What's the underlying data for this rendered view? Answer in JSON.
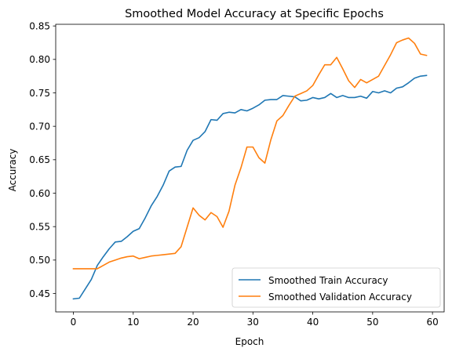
{
  "chart_data": {
    "type": "line",
    "title": "Smoothed Model Accuracy at Specific Epochs",
    "xlabel": "Epoch",
    "ylabel": "Accuracy",
    "xlim": [
      -2.95,
      61.95
    ],
    "ylim": [
      0.4225,
      0.8525
    ],
    "xticks": [
      0,
      10,
      20,
      30,
      40,
      50,
      60
    ],
    "yticks": [
      0.45,
      0.5,
      0.55,
      0.6,
      0.65,
      0.7,
      0.75,
      0.8,
      0.85
    ],
    "legend_position": "lower-right",
    "grid": false,
    "x": [
      0,
      1,
      2,
      3,
      4,
      5,
      6,
      7,
      8,
      9,
      10,
      11,
      12,
      13,
      14,
      15,
      16,
      17,
      18,
      19,
      20,
      21,
      22,
      23,
      24,
      25,
      26,
      27,
      28,
      29,
      30,
      31,
      32,
      33,
      34,
      35,
      36,
      37,
      38,
      39,
      40,
      41,
      42,
      43,
      44,
      45,
      46,
      47,
      48,
      49,
      50,
      51,
      52,
      53,
      54,
      55,
      56,
      57,
      58,
      59
    ],
    "series": [
      {
        "name": "Smoothed Train Accuracy",
        "color": "#1f77b4",
        "values": [
          0.442,
          0.443,
          0.457,
          0.471,
          0.492,
          0.505,
          0.517,
          0.527,
          0.528,
          0.535,
          0.543,
          0.547,
          0.563,
          0.581,
          0.595,
          0.612,
          0.633,
          0.639,
          0.64,
          0.664,
          0.679,
          0.683,
          0.692,
          0.71,
          0.709,
          0.719,
          0.721,
          0.72,
          0.725,
          0.723,
          0.727,
          0.732,
          0.739,
          0.74,
          0.74,
          0.746,
          0.745,
          0.744,
          0.738,
          0.739,
          0.743,
          0.741,
          0.743,
          0.749,
          0.743,
          0.746,
          0.743,
          0.743,
          0.745,
          0.742,
          0.752,
          0.75,
          0.753,
          0.75,
          0.757,
          0.759,
          0.765,
          0.772,
          0.775,
          0.776
        ]
      },
      {
        "name": "Smoothed Validation Accuracy",
        "color": "#ff7f0e",
        "values": [
          0.487,
          0.487,
          0.487,
          0.487,
          0.487,
          0.492,
          0.497,
          0.5,
          0.503,
          0.505,
          0.506,
          0.502,
          0.504,
          0.506,
          0.507,
          0.508,
          0.509,
          0.51,
          0.52,
          0.549,
          0.578,
          0.567,
          0.56,
          0.571,
          0.565,
          0.549,
          0.573,
          0.612,
          0.638,
          0.669,
          0.669,
          0.653,
          0.645,
          0.68,
          0.708,
          0.716,
          0.731,
          0.745,
          0.749,
          0.753,
          0.761,
          0.777,
          0.792,
          0.792,
          0.803,
          0.786,
          0.768,
          0.758,
          0.77,
          0.765,
          0.77,
          0.775,
          0.791,
          0.807,
          0.825,
          0.829,
          0.832,
          0.824,
          0.808,
          0.806
        ]
      }
    ]
  }
}
